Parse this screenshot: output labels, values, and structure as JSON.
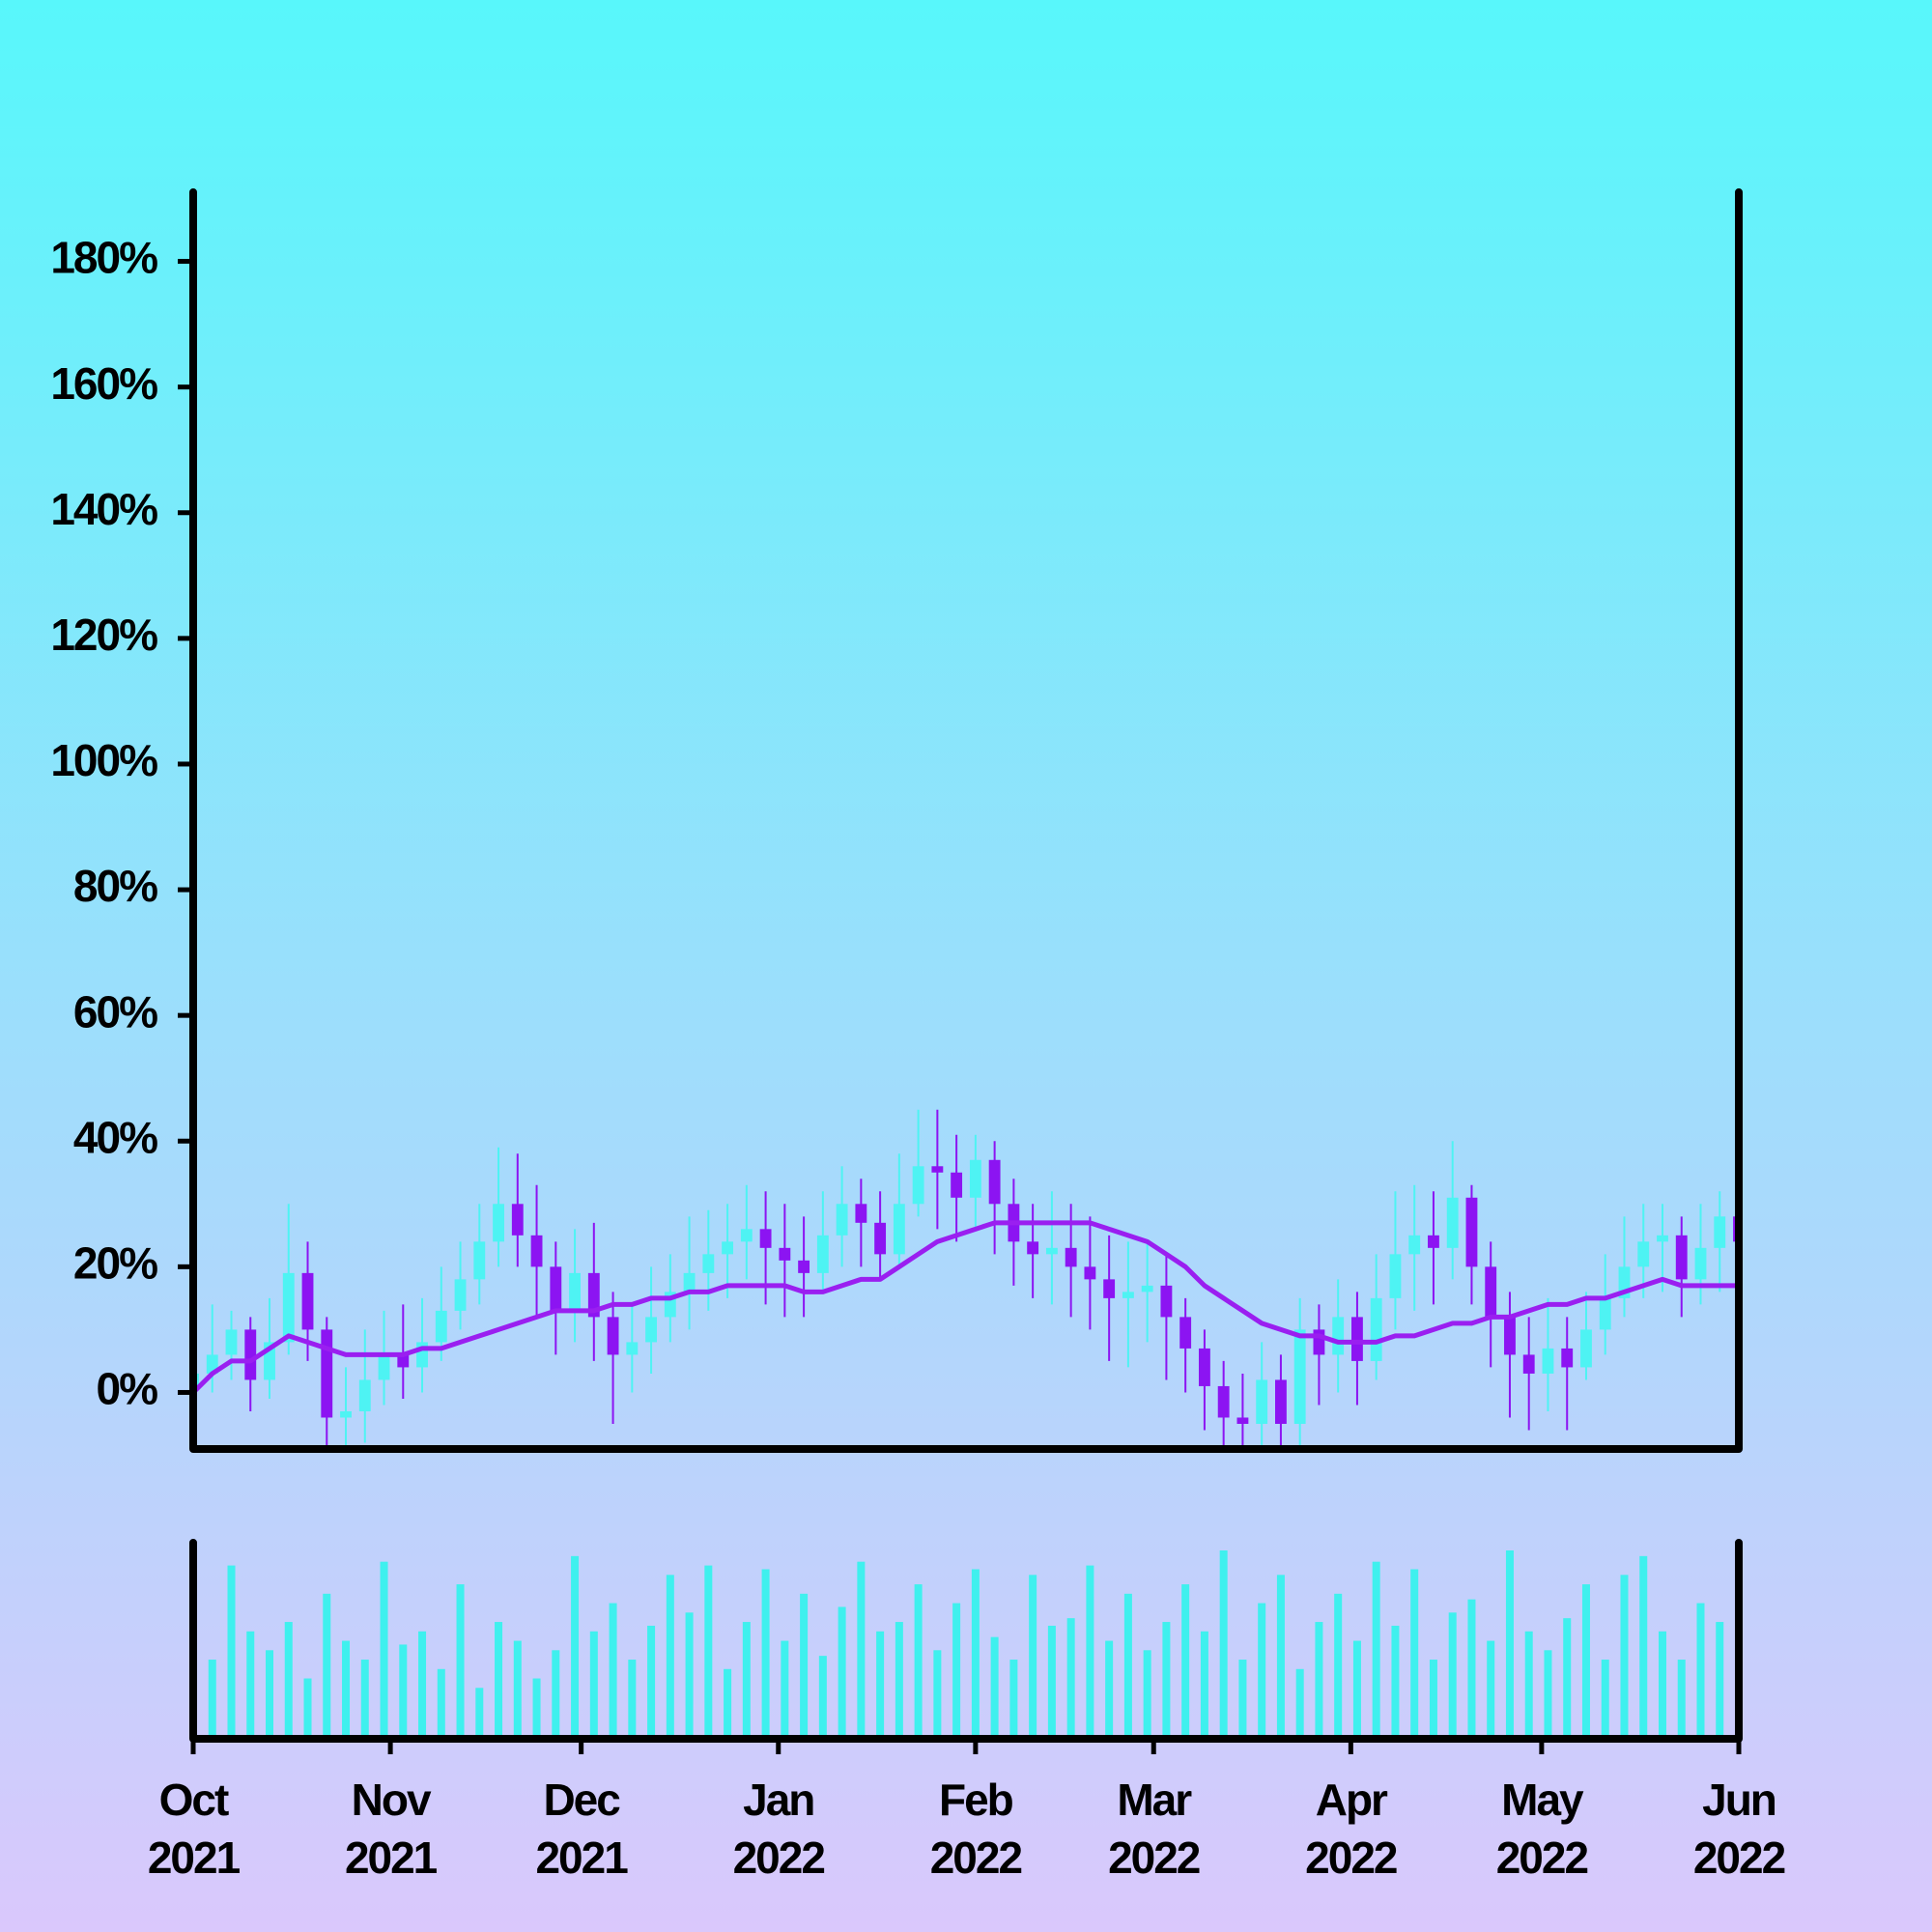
{
  "chart_data": {
    "type": "candlestick",
    "x": [
      0,
      3,
      6,
      9,
      12,
      15,
      18,
      21,
      24,
      27,
      30,
      33,
      36,
      39,
      42,
      45,
      48,
      51,
      54,
      57,
      60,
      63,
      66,
      69,
      72,
      75,
      78,
      81,
      84,
      87,
      90,
      93,
      96,
      99,
      102,
      105,
      108,
      111,
      114,
      117,
      120,
      123,
      126,
      129,
      132,
      135,
      138,
      141,
      144,
      147,
      150,
      153,
      156,
      159,
      162,
      165,
      168,
      171,
      174,
      177,
      180,
      183,
      186,
      189,
      192,
      195,
      198,
      201,
      204,
      207,
      210,
      213,
      216,
      219,
      222,
      225,
      228,
      231,
      234,
      237,
      240,
      243
    ],
    "open": [
      1,
      3,
      6,
      10,
      2,
      8,
      19,
      10,
      -4,
      -3,
      2,
      6,
      4,
      8,
      13,
      18,
      24,
      30,
      25,
      20,
      13,
      19,
      12,
      6,
      8,
      12,
      16,
      19,
      22,
      24,
      26,
      23,
      21,
      19,
      25,
      30,
      27,
      22,
      30,
      36,
      35,
      31,
      37,
      30,
      24,
      22,
      23,
      20,
      18,
      15,
      16,
      17,
      12,
      7,
      1,
      -4,
      -5,
      2,
      -5,
      10,
      6,
      12,
      5,
      15,
      22,
      25,
      23,
      31,
      20,
      12,
      6,
      3,
      7,
      4,
      10,
      15,
      20,
      24,
      25,
      18,
      23,
      28
    ],
    "high": [
      11,
      14,
      13,
      12,
      15,
      30,
      24,
      12,
      4,
      10,
      13,
      14,
      15,
      20,
      24,
      30,
      39,
      38,
      33,
      24,
      26,
      27,
      16,
      14,
      20,
      22,
      28,
      29,
      30,
      33,
      32,
      30,
      28,
      32,
      36,
      34,
      32,
      38,
      45,
      45,
      41,
      41,
      40,
      34,
      30,
      32,
      30,
      28,
      25,
      24,
      24,
      22,
      15,
      10,
      5,
      3,
      8,
      6,
      15,
      14,
      18,
      16,
      22,
      32,
      33,
      32,
      40,
      33,
      24,
      16,
      12,
      15,
      12,
      16,
      22,
      28,
      30,
      30,
      28,
      30,
      32,
      35
    ],
    "low": [
      -8,
      0,
      2,
      -3,
      -1,
      6,
      5,
      -9,
      -9,
      -8,
      -2,
      -1,
      0,
      5,
      10,
      14,
      20,
      20,
      12,
      6,
      8,
      5,
      -5,
      0,
      3,
      8,
      10,
      13,
      15,
      18,
      14,
      12,
      12,
      16,
      20,
      20,
      18,
      20,
      28,
      26,
      24,
      26,
      22,
      17,
      15,
      14,
      12,
      10,
      5,
      4,
      8,
      2,
      0,
      -6,
      -9,
      -9,
      -9,
      -9,
      -9,
      -2,
      0,
      -2,
      2,
      10,
      13,
      14,
      18,
      14,
      4,
      -4,
      -6,
      -3,
      -6,
      2,
      6,
      12,
      15,
      16,
      12,
      14,
      16,
      14
    ],
    "close": [
      3,
      6,
      10,
      2,
      8,
      19,
      10,
      -4,
      -3,
      2,
      6,
      4,
      8,
      13,
      18,
      24,
      30,
      25,
      20,
      13,
      19,
      12,
      6,
      8,
      12,
      16,
      19,
      22,
      24,
      26,
      23,
      21,
      19,
      25,
      30,
      27,
      22,
      30,
      36,
      35,
      31,
      37,
      30,
      24,
      22,
      23,
      20,
      18,
      15,
      16,
      17,
      12,
      7,
      1,
      -4,
      -5,
      2,
      -5,
      10,
      6,
      12,
      5,
      15,
      22,
      25,
      23,
      31,
      20,
      12,
      6,
      3,
      7,
      4,
      10,
      15,
      20,
      24,
      25,
      18,
      23,
      28,
      24
    ],
    "ma": [
      0,
      3,
      5,
      5,
      7,
      9,
      8,
      7,
      6,
      6,
      6,
      6,
      7,
      7,
      8,
      9,
      10,
      11,
      12,
      13,
      13,
      13,
      14,
      14,
      15,
      15,
      16,
      16,
      17,
      17,
      17,
      17,
      16,
      16,
      17,
      18,
      18,
      20,
      22,
      24,
      25,
      26,
      27,
      27,
      27,
      27,
      27,
      27,
      26,
      25,
      24,
      22,
      20,
      17,
      15,
      13,
      11,
      10,
      9,
      9,
      8,
      8,
      8,
      9,
      9,
      10,
      11,
      11,
      12,
      12,
      13,
      14,
      14,
      15,
      15,
      16,
      17,
      18,
      17,
      17,
      17,
      17
    ],
    "volume": [
      85,
      40,
      90,
      55,
      45,
      60,
      30,
      75,
      50,
      40,
      92,
      48,
      55,
      35,
      80,
      25,
      60,
      50,
      30,
      45,
      95,
      55,
      70,
      40,
      58,
      85,
      65,
      90,
      35,
      60,
      88,
      50,
      75,
      42,
      68,
      92,
      55,
      60,
      80,
      45,
      70,
      88,
      52,
      40,
      85,
      58,
      62,
      90,
      50,
      75,
      45,
      60,
      80,
      55,
      98,
      40,
      70,
      85,
      35,
      60,
      75,
      50,
      92,
      58,
      88,
      40,
      65,
      72,
      50,
      98,
      55,
      45,
      62,
      80,
      40,
      85,
      95,
      55,
      40,
      70,
      60,
      80
    ],
    "up_color": "#4ef3f3",
    "down_color": "#8c14f2",
    "ma_color": "#9a1ff0",
    "volume_color": "#3ff0ee",
    "xlim": [
      0,
      243
    ],
    "xticks": [
      {
        "value": 0,
        "label": [
          "Oct",
          "2021"
        ]
      },
      {
        "value": 31,
        "label": [
          "Nov",
          "2021"
        ]
      },
      {
        "value": 61,
        "label": [
          "Dec",
          "2021"
        ]
      },
      {
        "value": 92,
        "label": [
          "Jan",
          "2022"
        ]
      },
      {
        "value": 123,
        "label": [
          "Feb",
          "2022"
        ]
      },
      {
        "value": 151,
        "label": [
          "Mar",
          "2022"
        ]
      },
      {
        "value": 182,
        "label": [
          "Apr",
          "2022"
        ]
      },
      {
        "value": 212,
        "label": [
          "May",
          "2022"
        ]
      },
      {
        "value": 243,
        "label": [
          "Jun",
          "2022"
        ]
      }
    ],
    "ylim": [
      -9,
      191
    ],
    "yticks": [
      {
        "value": 0,
        "label": "0%"
      },
      {
        "value": 20,
        "label": "20%"
      },
      {
        "value": 40,
        "label": "40%"
      },
      {
        "value": 60,
        "label": "60%"
      },
      {
        "value": 80,
        "label": "80%"
      },
      {
        "value": 100,
        "label": "100%"
      },
      {
        "value": 120,
        "label": "120%"
      },
      {
        "value": 140,
        "label": "140%"
      },
      {
        "value": 160,
        "label": "160%"
      },
      {
        "value": 180,
        "label": "180%"
      }
    ]
  }
}
